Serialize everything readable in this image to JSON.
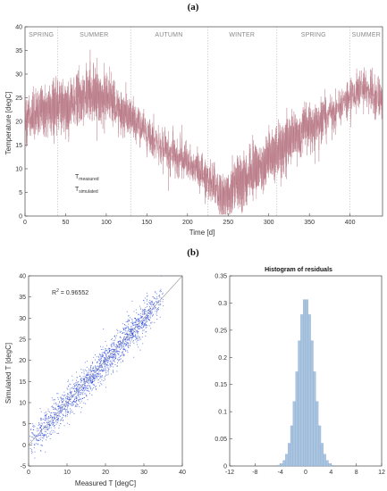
{
  "chart_data": [
    {
      "type": "line",
      "panel_label": "(a)",
      "xlabel": "Time [d]",
      "ylabel": "Temperature [degC]",
      "xlim": [
        0,
        440
      ],
      "ylim": [
        0,
        40
      ],
      "x_ticks": [
        "0",
        "50",
        "100",
        "150",
        "200",
        "250",
        "300",
        "350",
        "400"
      ],
      "y_ticks": [
        "0",
        "5",
        "10",
        "15",
        "20",
        "25",
        "30",
        "35",
        "40"
      ],
      "season_boundaries": [
        40,
        130,
        225,
        310,
        400
      ],
      "seasons": [
        {
          "label": "SPRING",
          "x": 20
        },
        {
          "label": "SUMMER",
          "x": 85
        },
        {
          "label": "AUTUMN",
          "x": 177
        },
        {
          "label": "WINTER",
          "x": 267
        },
        {
          "label": "SPRING",
          "x": 355
        },
        {
          "label": "SUMMER",
          "x": 420
        }
      ],
      "legend": {
        "measured": {
          "base": "T",
          "sub": "measured"
        },
        "simulated": {
          "base": "T",
          "sub": "simulated"
        }
      },
      "series": [
        {
          "values_x": [
            0,
            20,
            40,
            60,
            80,
            100,
            120,
            140,
            160,
            180,
            200,
            220,
            240,
            250,
            260,
            280,
            300,
            320,
            340,
            360,
            380,
            400,
            420,
            440
          ],
          "values_y": [
            21,
            22,
            23,
            24,
            26,
            25,
            22,
            19,
            16,
            13,
            11,
            9,
            5,
            4,
            6,
            9,
            12,
            15,
            18,
            20,
            22,
            25,
            27,
            24
          ]
        }
      ],
      "colors": {
        "measured": "#c8929c",
        "simulated": "#a86070"
      }
    },
    {
      "type": "scatter",
      "panel_label": "(b)",
      "xlabel": "Measured T [degC]",
      "ylabel": "Simulated T [degC]",
      "xlim": [
        0,
        40
      ],
      "ylim": [
        -5,
        40
      ],
      "x_ticks": [
        "0",
        "10",
        "20",
        "30",
        "40"
      ],
      "y_ticks": [
        "-5",
        "0",
        "5",
        "10",
        "15",
        "20",
        "25",
        "30",
        "35",
        "40"
      ],
      "annotation": {
        "base": "R",
        "sup": "2",
        "text": " = 0.96552"
      },
      "fit_line": [
        [
          0,
          0
        ],
        [
          40,
          40
        ]
      ],
      "color": "#1f3fd6"
    },
    {
      "type": "bar",
      "title": "Histogram of residuals",
      "xlim": [
        -12,
        12
      ],
      "ylim": [
        0,
        0.35
      ],
      "x_ticks": [
        "-12",
        "-8",
        "-4",
        "0",
        "4",
        "8",
        "12"
      ],
      "y_ticks": [
        "0",
        "0.05",
        "0.1",
        "0.15",
        "0.2",
        "0.25",
        "0.3",
        "0.35"
      ],
      "bin_width": 0.4,
      "peak": 0.31,
      "sigma": 1.3,
      "color": "#a9c4e0"
    }
  ]
}
